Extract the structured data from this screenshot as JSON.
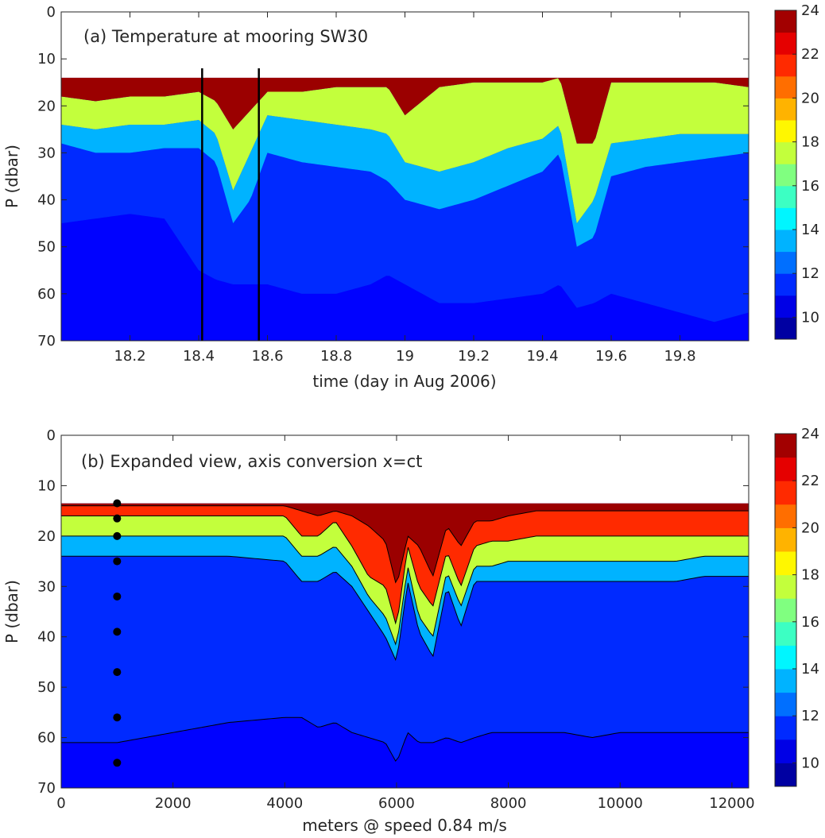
{
  "chart_data": [
    {
      "type": "heatmap",
      "title": "(a) Temperature at mooring SW30",
      "xlabel": "time (day in Aug 2006)",
      "ylabel": "P (dbar)",
      "xlim": [
        18.0,
        20.0
      ],
      "ylim": [
        70,
        0
      ],
      "y_reversed": true,
      "x_ticks": [
        "18.2",
        "18.4",
        "18.6",
        "18.8",
        "19",
        "19.2",
        "19.4",
        "19.6",
        "19.8"
      ],
      "x_tick_values": [
        18.2,
        18.4,
        18.6,
        18.8,
        19.0,
        19.2,
        19.4,
        19.6,
        19.8
      ],
      "y_ticks": [
        "0",
        "10",
        "20",
        "30",
        "40",
        "50",
        "60",
        "70"
      ],
      "y_tick_values": [
        0,
        10,
        20,
        30,
        40,
        50,
        60,
        70
      ],
      "vertical_lines_x": [
        18.41,
        18.575
      ],
      "surface_depth_dbar": 14,
      "colorbar": {
        "min": 9,
        "max": 24,
        "ticks": [
          "10",
          "12",
          "14",
          "16",
          "18",
          "20",
          "22",
          "24"
        ],
        "tick_values": [
          10,
          12,
          14,
          16,
          18,
          20,
          22,
          24
        ]
      },
      "isotherm_depth_profile": {
        "x": [
          18.0,
          18.1,
          18.2,
          18.3,
          18.4,
          18.45,
          18.5,
          18.55,
          18.6,
          18.7,
          18.8,
          18.9,
          18.95,
          19.0,
          19.1,
          19.2,
          19.3,
          19.4,
          19.45,
          19.5,
          19.55,
          19.6,
          19.7,
          19.8,
          19.9,
          20.0
        ],
        "t20_depth": [
          18,
          19,
          18,
          18,
          17,
          19,
          25,
          21,
          17,
          17,
          16,
          16,
          16,
          22,
          16,
          15,
          15,
          15,
          14,
          28,
          28,
          15,
          15,
          15,
          15,
          16
        ],
        "t15_depth": [
          24,
          25,
          24,
          24,
          23,
          26,
          38,
          30,
          22,
          23,
          24,
          25,
          26,
          32,
          34,
          32,
          29,
          27,
          24,
          45,
          40,
          28,
          27,
          26,
          26,
          26
        ],
        "t12_depth": [
          28,
          30,
          30,
          29,
          29,
          32,
          45,
          40,
          30,
          32,
          33,
          34,
          36,
          40,
          42,
          40,
          37,
          34,
          30,
          50,
          48,
          35,
          33,
          32,
          31,
          30
        ],
        "t11_depth": [
          45,
          44,
          43,
          44,
          55,
          57,
          58,
          58,
          58,
          60,
          60,
          58,
          56,
          58,
          62,
          62,
          61,
          60,
          58,
          63,
          62,
          60,
          62,
          64,
          66,
          64
        ]
      }
    },
    {
      "type": "heatmap",
      "title": "(b) Expanded view, axis conversion x=ct",
      "xlabel": "meters @ speed 0.84 m/s",
      "ylabel": "P (dbar)",
      "xlim": [
        0,
        12300
      ],
      "ylim": [
        70,
        0
      ],
      "y_reversed": true,
      "x_ticks": [
        "0",
        "2000",
        "4000",
        "6000",
        "8000",
        "10000",
        "12000"
      ],
      "x_tick_values": [
        0,
        2000,
        4000,
        6000,
        8000,
        10000,
        12000
      ],
      "y_ticks": [
        "0",
        "10",
        "20",
        "30",
        "40",
        "50",
        "60",
        "70"
      ],
      "y_tick_values": [
        0,
        10,
        20,
        30,
        40,
        50,
        60,
        70
      ],
      "surface_depth_dbar": 13.5,
      "colorbar": {
        "min": 9,
        "max": 24,
        "ticks": [
          "10",
          "12",
          "14",
          "16",
          "18",
          "20",
          "22",
          "24"
        ],
        "tick_values": [
          10,
          12,
          14,
          16,
          18,
          20,
          22,
          24
        ]
      },
      "sensor_x": 1000,
      "sensor_depths": [
        13.5,
        16.5,
        20,
        25,
        32,
        39,
        47,
        56,
        65
      ],
      "isotherm_depth_profile": {
        "x": [
          0,
          1000,
          2000,
          3000,
          4000,
          4300,
          4600,
          4900,
          5200,
          5500,
          5800,
          6000,
          6200,
          6400,
          6650,
          6900,
          7150,
          7400,
          7700,
          8000,
          8500,
          9000,
          9500,
          10000,
          10500,
          11000,
          11500,
          12300
        ],
        "t23_depth": [
          14,
          14,
          14,
          14,
          14,
          15,
          16,
          15,
          16,
          18,
          21,
          30,
          20,
          22,
          28,
          18,
          22,
          17,
          17,
          16,
          15,
          15,
          15,
          15,
          15,
          15,
          15,
          15
        ],
        "t20_depth": [
          16,
          16,
          16,
          16,
          16,
          20,
          20,
          17,
          22,
          28,
          30,
          38,
          22,
          30,
          34,
          23,
          30,
          22,
          21,
          21,
          20,
          20,
          20,
          20,
          20,
          20,
          20,
          20
        ],
        "t15_depth": [
          20,
          20,
          20,
          20,
          20,
          24,
          24,
          22,
          26,
          32,
          36,
          42,
          26,
          36,
          40,
          27,
          34,
          26,
          26,
          25,
          25,
          25,
          25,
          25,
          25,
          25,
          24,
          24
        ],
        "t12_depth": [
          24,
          24,
          24,
          24,
          25,
          29,
          29,
          27,
          30,
          35,
          40,
          45,
          29,
          39,
          44,
          30,
          38,
          29,
          29,
          29,
          29,
          29,
          29,
          29,
          29,
          29,
          28,
          28
        ],
        "t11_depth": [
          61,
          61,
          59,
          57,
          56,
          56,
          58,
          57,
          59,
          60,
          61,
          65,
          59,
          61,
          61,
          60,
          61,
          60,
          59,
          59,
          59,
          59,
          60,
          59,
          59,
          59,
          59,
          59
        ]
      }
    }
  ]
}
